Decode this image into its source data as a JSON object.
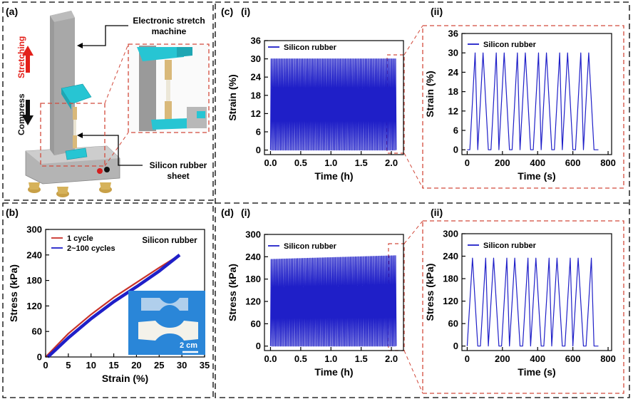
{
  "panel_labels": {
    "a": "(a)",
    "b": "(b)",
    "c": "(c)",
    "d": "(d)",
    "i": "(i)",
    "ii": "(ii)"
  },
  "panel_a": {
    "stretching": "Stretching",
    "compress": "Compress",
    "machine_label_1": "Electronic stretch",
    "machine_label_2": "machine",
    "sheet_label_1": "Silicon rubber",
    "sheet_label_2": "sheet"
  },
  "panel_b_inset": {
    "scale_label": "2 cm"
  },
  "colors": {
    "blue": "#1f1fc8",
    "red": "#c8322a",
    "dash": "#d24a3c",
    "inset_bg": "#2a86d8"
  },
  "chart_data": [
    {
      "id": "b",
      "type": "line",
      "title": "Silicon rubber",
      "xlabel": "Strain (%)",
      "ylabel": "Stress (kPa)",
      "xlim": [
        0,
        35
      ],
      "ylim": [
        0,
        300
      ],
      "xticks": [
        "0",
        "5",
        "10",
        "15",
        "20",
        "25",
        "30",
        "35"
      ],
      "yticks": [
        "0",
        "60",
        "120",
        "180",
        "240",
        "300"
      ],
      "series": [
        {
          "name": "1 cycle",
          "color": "#c8322a",
          "x": [
            0,
            2,
            5,
            10,
            15,
            20,
            25,
            29.5
          ],
          "y": [
            0,
            22,
            55,
            100,
            140,
            175,
            210,
            240
          ]
        },
        {
          "name": "2~100 cycles",
          "color": "#1f1fc8",
          "x": [
            0.5,
            2,
            5,
            10,
            15,
            20,
            25,
            29.5
          ],
          "y": [
            0,
            15,
            45,
            90,
            130,
            165,
            202,
            240
          ]
        }
      ]
    },
    {
      "id": "c-i",
      "type": "line",
      "xlabel": "Time (h)",
      "ylabel": "Strain (%)",
      "xlim": [
        -0.1,
        2.2
      ],
      "ylim": [
        -1.5,
        36
      ],
      "xticks": [
        "0.0",
        "0.5",
        "1.0",
        "1.5",
        "2.0"
      ],
      "yticks": [
        "0",
        "6",
        "12",
        "18",
        "24",
        "30",
        "36"
      ],
      "series": [
        {
          "name": "Silicon rubber",
          "color": "#1f1fc8",
          "x_start": 0,
          "x_end": 2.08,
          "min": 0,
          "max": 30,
          "cycles": 100
        }
      ]
    },
    {
      "id": "c-ii",
      "type": "line",
      "xlabel": "Time (s)",
      "ylabel": "Strain (%)",
      "xlim": [
        -30,
        820
      ],
      "ylim": [
        -1.5,
        36
      ],
      "xticks": [
        "0",
        "200",
        "400",
        "600",
        "800"
      ],
      "yticks": [
        "0",
        "6",
        "12",
        "18",
        "24",
        "30",
        "36"
      ],
      "series": [
        {
          "name": "Silicon rubber",
          "color": "#1f1fc8",
          "x": [
            0,
            15,
            45,
            60,
            90,
            120,
            135,
            165,
            180,
            210,
            240,
            255,
            285,
            300,
            330,
            360,
            375,
            405,
            420,
            450,
            480,
            495,
            525,
            540,
            570,
            600,
            615,
            645,
            660,
            690,
            720,
            735,
            745
          ],
          "y": [
            0,
            0,
            30,
            0,
            30,
            0,
            0,
            30,
            0,
            30,
            0,
            0,
            30,
            0,
            30,
            0,
            0,
            30,
            0,
            30,
            0,
            0,
            30,
            0,
            30,
            0,
            0,
            30,
            0,
            30,
            0,
            0,
            0
          ]
        }
      ]
    },
    {
      "id": "d-i",
      "type": "line",
      "xlabel": "Time (h)",
      "ylabel": "Stress (kPa)",
      "xlim": [
        -0.1,
        2.2
      ],
      "ylim": [
        -12,
        300
      ],
      "xticks": [
        "0.0",
        "0.5",
        "1.0",
        "1.5",
        "2.0"
      ],
      "yticks": [
        "0",
        "60",
        "120",
        "180",
        "240",
        "300"
      ],
      "series": [
        {
          "name": "Silicon rubber",
          "color": "#1f1fc8",
          "x_start": 0,
          "x_end": 2.08,
          "min": 0,
          "max_start": 233,
          "max_end": 243,
          "cycles": 100
        }
      ]
    },
    {
      "id": "d-ii",
      "type": "line",
      "xlabel": "Time (s)",
      "ylabel": "Stress (kPa)",
      "xlim": [
        -30,
        820
      ],
      "ylim": [
        -12,
        300
      ],
      "xticks": [
        "0",
        "200",
        "400",
        "600",
        "800"
      ],
      "yticks": [
        "0",
        "60",
        "120",
        "180",
        "240",
        "300"
      ],
      "series": [
        {
          "name": "Silicon rubber",
          "color": "#1f1fc8",
          "x": [
            0,
            30,
            60,
            75,
            105,
            120,
            150,
            180,
            195,
            225,
            240,
            270,
            300,
            315,
            345,
            360,
            390,
            420,
            435,
            465,
            480,
            510,
            540,
            555,
            585,
            600,
            630,
            660,
            675,
            705,
            720,
            745
          ],
          "y": [
            0,
            235,
            0,
            0,
            235,
            0,
            235,
            0,
            0,
            235,
            0,
            235,
            0,
            0,
            235,
            0,
            235,
            0,
            0,
            235,
            0,
            235,
            0,
            0,
            235,
            0,
            235,
            0,
            0,
            235,
            0,
            0
          ]
        }
      ]
    }
  ]
}
